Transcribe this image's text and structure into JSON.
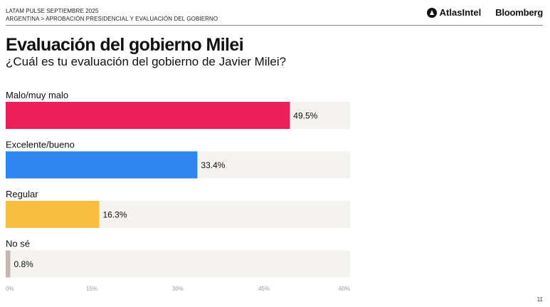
{
  "header": {
    "line1": "LATAM PULSE SEPTIEMBRE 2025",
    "line2": "ARGENTINA > APROBACIÓN PRESIDENCIAL Y EVALUACIÓN DEL GOBIERNO"
  },
  "logos": {
    "atlas": "AtlasIntel",
    "bloomberg": "Bloomberg"
  },
  "page_number": "11",
  "chart_data": {
    "type": "bar",
    "orientation": "horizontal",
    "title": "Evaluación del gobierno Milei",
    "subtitle": "¿Cuál es tu evaluación del gobierno de Javier Milei?",
    "categories": [
      "Malo/muy malo",
      "Excelente/bueno",
      "Regular",
      "No sé"
    ],
    "values": [
      49.5,
      33.4,
      16.3,
      0.8
    ],
    "value_labels": [
      "49.5%",
      "33.4%",
      "16.3%",
      "0.8%"
    ],
    "colors": [
      "#EC1F5B",
      "#2F86F2",
      "#F8BE40",
      "#C4B7AE"
    ],
    "track_color": "#F4F3EF",
    "xlim": [
      0,
      60
    ],
    "xticks": [
      0,
      15,
      30,
      45,
      60
    ],
    "xtick_labels": [
      "0%",
      "15%",
      "30%",
      "45%",
      "60%"
    ],
    "grid": false
  }
}
